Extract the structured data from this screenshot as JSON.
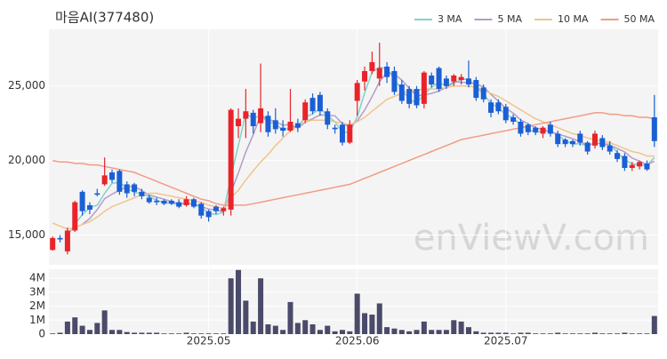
{
  "chart_data": {
    "type": "candlestick",
    "title": "마음AI(377480)",
    "watermark": "enViewV.com",
    "categories": [
      null,
      null,
      null,
      null,
      null,
      null,
      null,
      null,
      null,
      null,
      null,
      null,
      null,
      null,
      null,
      null,
      null,
      null,
      null,
      null,
      null,
      "2025.05",
      null,
      null,
      null,
      null,
      null,
      null,
      null,
      null,
      null,
      null,
      null,
      null,
      null,
      null,
      null,
      null,
      null,
      null,
      null,
      "2025.06",
      null,
      null,
      null,
      null,
      null,
      null,
      null,
      null,
      null,
      null,
      null,
      null,
      null,
      null,
      null,
      null,
      null,
      null,
      null,
      "2025.07",
      null,
      null,
      null,
      null,
      null,
      null,
      null,
      null,
      null,
      null,
      null,
      null,
      null,
      null,
      null,
      null,
      null,
      null,
      null,
      null
    ],
    "up_color": "#e8242a",
    "down_color": "#1a5fd6",
    "open": [
      14000,
      14800,
      13900,
      15300,
      17900,
      17000,
      17800,
      18400,
      19200,
      19300,
      18400,
      18400,
      17900,
      17500,
      17300,
      17300,
      17300,
      17200,
      17000,
      17400,
      17100,
      16600,
      16900,
      16600,
      16700,
      22300,
      22800,
      23200,
      22500,
      23000,
      22700,
      22200,
      22000,
      22500,
      22700,
      24200,
      24400,
      23300,
      22200,
      22400,
      21200,
      24000,
      25300,
      26000,
      25500,
      26300,
      26000,
      25100,
      24800,
      24800,
      23800,
      25700,
      26200,
      25500,
      25300,
      25400,
      25500,
      25400,
      24900,
      23900,
      23900,
      23600,
      22900,
      22600,
      22400,
      22200,
      21800,
      22400,
      21800,
      21400,
      21300,
      21800,
      21200,
      21000,
      21500,
      21000,
      20500,
      20300,
      19500,
      19600,
      19800,
      22900
    ],
    "high": [
      14900,
      15000,
      15500,
      17300,
      18000,
      17200,
      18100,
      20200,
      19400,
      19400,
      18600,
      18500,
      18100,
      17700,
      17500,
      17400,
      17400,
      17400,
      17600,
      17500,
      17200,
      16700,
      17000,
      16900,
      23500,
      23500,
      24800,
      23400,
      26500,
      23300,
      23500,
      22700,
      24800,
      22800,
      24100,
      24500,
      24600,
      23500,
      22400,
      22600,
      22700,
      25400,
      26300,
      27300,
      27900,
      26600,
      26300,
      25400,
      25000,
      25000,
      26000,
      25900,
      26300,
      25700,
      25800,
      25800,
      26700,
      25600,
      25100,
      24100,
      24100,
      23800,
      23100,
      22800,
      22500,
      22300,
      22300,
      22600,
      22000,
      21500,
      21400,
      22000,
      21300,
      22000,
      21700,
      21300,
      20700,
      20500,
      19900,
      20000,
      20000,
      24400
    ],
    "low": [
      13950,
      14500,
      13700,
      15200,
      16300,
      16400,
      17600,
      18300,
      18500,
      17700,
      17500,
      17600,
      17400,
      17100,
      17000,
      17000,
      17000,
      16800,
      16900,
      16800,
      16100,
      15900,
      16400,
      16300,
      16300,
      21500,
      21500,
      21800,
      21900,
      21600,
      21800,
      21600,
      21900,
      21900,
      22500,
      23100,
      23000,
      22100,
      21800,
      21000,
      21100,
      23000,
      24700,
      25800,
      25000,
      25200,
      24400,
      23800,
      23500,
      23500,
      23500,
      24900,
      24600,
      24800,
      25000,
      25100,
      24900,
      24000,
      23900,
      22900,
      23100,
      22500,
      22400,
      21600,
      21700,
      21700,
      21500,
      21600,
      20900,
      20900,
      20900,
      21000,
      20400,
      20800,
      20700,
      20400,
      19900,
      19300,
      19300,
      19400,
      19300,
      20900
    ],
    "close": [
      14800,
      14700,
      15300,
      17200,
      16600,
      16700,
      17700,
      19000,
      18700,
      17900,
      17800,
      17900,
      17600,
      17200,
      17200,
      17100,
      17100,
      16900,
      17400,
      16900,
      16300,
      16200,
      16600,
      16800,
      23400,
      22800,
      23300,
      22300,
      23500,
      21900,
      22100,
      22000,
      22600,
      22200,
      23900,
      23300,
      23300,
      22400,
      22100,
      21200,
      22400,
      25200,
      26000,
      26600,
      26200,
      25600,
      24600,
      24000,
      23800,
      23700,
      25900,
      25100,
      24800,
      25000,
      25700,
      25600,
      25100,
      24200,
      24100,
      23200,
      23300,
      22700,
      22600,
      21800,
      21900,
      21900,
      22200,
      21800,
      21100,
      21100,
      21100,
      21200,
      20600,
      21800,
      20900,
      20600,
      20100,
      19500,
      19700,
      19900,
      19400,
      21300
    ],
    "series": [
      {
        "name": "3 MA",
        "color": "#7fd3c9",
        "values": [
          null,
          null,
          14933,
          15733,
          16367,
          16833,
          17000,
          17800,
          18467,
          18533,
          18133,
          17867,
          17767,
          17567,
          17333,
          17167,
          17133,
          17033,
          17133,
          17067,
          16867,
          16467,
          16367,
          16533,
          18933,
          21000,
          23167,
          22800,
          23033,
          22567,
          22500,
          22000,
          22233,
          22267,
          22900,
          23133,
          23500,
          23000,
          22600,
          21900,
          21900,
          22933,
          24533,
          25933,
          26267,
          26133,
          25467,
          24733,
          24133,
          23833,
          24467,
          24900,
          25267,
          24967,
          25167,
          25433,
          25467,
          24967,
          24467,
          23833,
          23533,
          23067,
          22867,
          22367,
          22100,
          21867,
          22000,
          21967,
          21700,
          21333,
          21100,
          21133,
          20967,
          21200,
          21100,
          21100,
          20533,
          20067,
          19767,
          19700,
          19667,
          20200
        ]
      },
      {
        "name": "5 MA",
        "color": "#b49cc8",
        "values": [
          null,
          null,
          null,
          null,
          15720,
          16100,
          16700,
          17440,
          17740,
          18000,
          18220,
          18260,
          17980,
          17680,
          17540,
          17400,
          17240,
          17100,
          17140,
          17080,
          16920,
          16740,
          16680,
          16560,
          17860,
          19160,
          20580,
          21720,
          23060,
          22760,
          22620,
          22360,
          22420,
          22160,
          22560,
          22800,
          23060,
          23020,
          23000,
          22460,
          22280,
          22660,
          23380,
          24280,
          25280,
          25920,
          25800,
          25400,
          24840,
          24340,
          24400,
          24500,
          24660,
          24900,
          25300,
          25240,
          25240,
          25120,
          24940,
          24440,
          23980,
          23500,
          23180,
          22720,
          22460,
          22180,
          22080,
          21920,
          21780,
          21620,
          21460,
          21260,
          21020,
          21160,
          21120,
          21020,
          20800,
          20580,
          20160,
          19960,
          19720,
          19960
        ]
      },
      {
        "name": "10 MA",
        "color": "#f2c38c",
        "values": [
          15800,
          15600,
          15400,
          15500,
          15700,
          15900,
          16200,
          16600,
          16900,
          17100,
          17300,
          17500,
          17700,
          17800,
          17800,
          17700,
          17600,
          17500,
          17400,
          17300,
          17200,
          17000,
          16900,
          16800,
          17500,
          18000,
          18700,
          19300,
          19900,
          20400,
          21000,
          21500,
          22000,
          22300,
          22600,
          22700,
          22700,
          22700,
          22600,
          22500,
          22400,
          22600,
          22900,
          23300,
          23700,
          24100,
          24300,
          24500,
          24700,
          24700,
          24800,
          24800,
          24800,
          24900,
          25000,
          25000,
          25000,
          24900,
          24700,
          24500,
          24300,
          24000,
          23700,
          23400,
          23100,
          22800,
          22600,
          22400,
          22200,
          22000,
          21800,
          21700,
          21500,
          21400,
          21300,
          21200,
          21000,
          20800,
          20600,
          20500,
          20300,
          20300
        ]
      },
      {
        "name": "50 MA",
        "color": "#f29b85",
        "values": [
          20000,
          19900,
          19900,
          19800,
          19800,
          19700,
          19700,
          19600,
          19500,
          19400,
          19300,
          19200,
          19000,
          18800,
          18600,
          18400,
          18200,
          18000,
          17800,
          17600,
          17400,
          17300,
          17100,
          17000,
          17000,
          17000,
          17000,
          17100,
          17200,
          17300,
          17400,
          17500,
          17600,
          17700,
          17800,
          17900,
          18000,
          18100,
          18200,
          18300,
          18400,
          18600,
          18800,
          19000,
          19200,
          19400,
          19600,
          19800,
          20000,
          20200,
          20400,
          20600,
          20800,
          21000,
          21200,
          21400,
          21500,
          21600,
          21700,
          21800,
          21900,
          22000,
          22100,
          22200,
          22300,
          22400,
          22500,
          22600,
          22700,
          22800,
          22900,
          23000,
          23100,
          23200,
          23200,
          23100,
          23100,
          23000,
          23000,
          22900,
          22900,
          22800
        ]
      }
    ],
    "ylim": [
      13000,
      28800
    ],
    "yticks": [
      {
        "value": 15000,
        "label": "15,000"
      },
      {
        "value": 20000,
        "label": "20,000"
      },
      {
        "value": 25000,
        "label": "25,000"
      }
    ],
    "volume": {
      "color": "#4a4a6a",
      "values": [
        50000,
        100000,
        900000,
        1200000,
        600000,
        300000,
        800000,
        1700000,
        300000,
        300000,
        150000,
        100000,
        100000,
        100000,
        100000,
        50000,
        50000,
        50000,
        100000,
        50000,
        50000,
        50000,
        50000,
        50000,
        4000000,
        4600000,
        2400000,
        900000,
        4000000,
        700000,
        600000,
        300000,
        2300000,
        800000,
        1000000,
        700000,
        300000,
        600000,
        200000,
        300000,
        200000,
        2900000,
        1500000,
        1400000,
        2200000,
        500000,
        400000,
        300000,
        200000,
        300000,
        900000,
        300000,
        300000,
        300000,
        1000000,
        900000,
        500000,
        200000,
        100000,
        100000,
        100000,
        100000,
        50000,
        100000,
        100000,
        50000,
        50000,
        50000,
        100000,
        50000,
        50000,
        50000,
        50000,
        100000,
        50000,
        50000,
        50000,
        100000,
        50000,
        50000,
        50000,
        1300000
      ],
      "ylim": [
        0,
        4650000
      ],
      "yticks": [
        0,
        {
          "value": 1000000,
          "label": "1M"
        },
        {
          "value": 2000000,
          "label": "2M"
        },
        {
          "value": 3000000,
          "label": "3M"
        },
        {
          "value": 4000000,
          "label": "4M"
        }
      ]
    },
    "grid": true,
    "legend": "top-right"
  }
}
